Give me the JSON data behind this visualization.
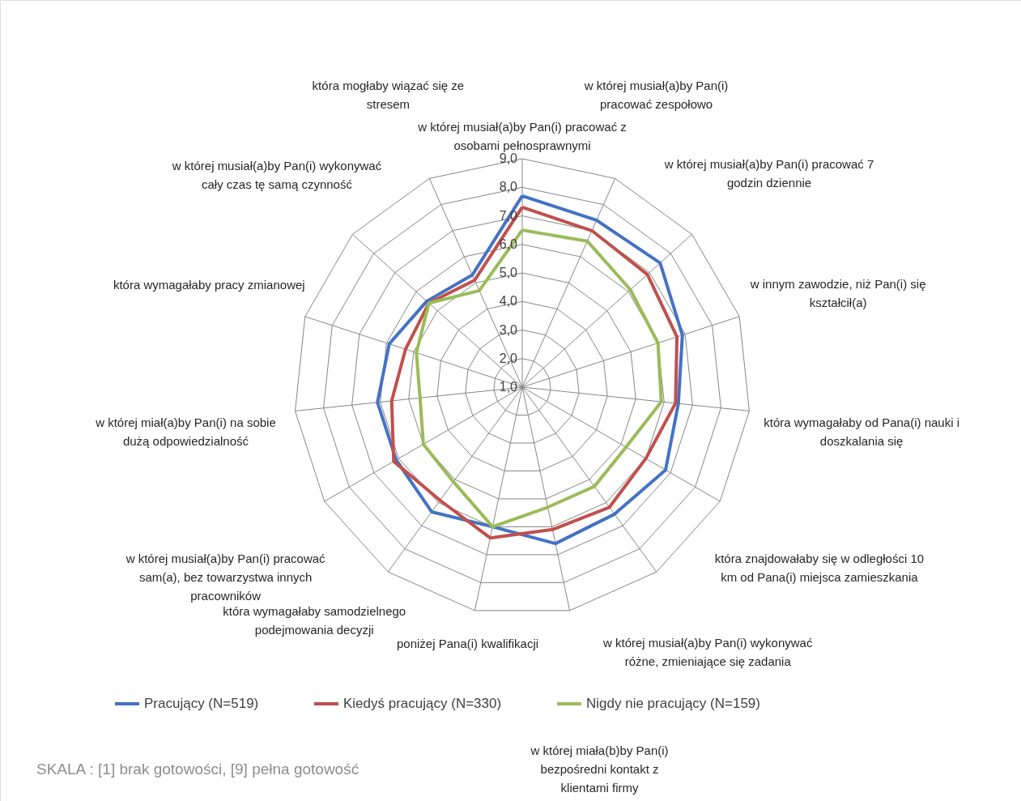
{
  "chart_data": {
    "type": "radar",
    "categories": [
      "w której musiał(a)by Pan(i) pracować z osobami pełnosprawnymi",
      "w której musiał(a)by Pan(i) pracować zespołowo",
      "w której musiał(a)by Pan(i) pracować 7 godzin dziennie",
      "w innym zawodzie, niż Pan(i) się kształcił(a)",
      "która wymagałaby od Pana(i) nauki i doszkalania się",
      "która znajdowałaby się w odległości 10 km od Pana(i) miejsca zamieszkania",
      "w której musiał(a)by Pan(i) wykonywać różne, zmieniające się zadania",
      "w której miała(b)by Pan(i) bezpośredni kontakt z klientami firmy",
      "poniżej Pana(i) kwalifikacji",
      "która wymagałaby samodzielnego podejmowania decyzji",
      "w której musiał(a)by Pan(i) pracować sam(a), bez towarzystwa innych pracowników",
      "w której miał(a)by Pan(i) na sobie dużą odpowiedzialność",
      "która wymagałaby pracy zmianowej",
      "w której musiał(a)by Pan(i) wykonywać cały czas tę samą czynność",
      "która mogłaby wiązać się ze stresem"
    ],
    "series": [
      {
        "name": "Pracujący (N=519)",
        "color": "#4472c4",
        "values": [
          7.7,
          7.4,
          7.5,
          6.9,
          6.5,
          6.8,
          6.5,
          6.6,
          6.0,
          6.4,
          6.1,
          6.1,
          5.9,
          5.5,
          5.3
        ]
      },
      {
        "name": "Kiedyś pracujący (N=330)",
        "color": "#c0504d",
        "values": [
          7.3,
          7.0,
          6.9,
          6.7,
          6.4,
          6.0,
          6.2,
          6.1,
          6.4,
          5.9,
          6.2,
          5.6,
          5.3,
          5.4,
          5.1
        ]
      },
      {
        "name": "Nigdy nie pracujący (N=159)",
        "color": "#9bbb59",
        "values": [
          6.5,
          6.6,
          6.1,
          6.0,
          5.9,
          5.2,
          5.3,
          5.3,
          6.0,
          5.1,
          5.0,
          4.6,
          4.9,
          5.4,
          4.7
        ]
      }
    ],
    "ylim": [
      1,
      9
    ],
    "yticks": [
      {
        "value": 1,
        "label": "1,0"
      },
      {
        "value": 2,
        "label": "2,0"
      },
      {
        "value": 3,
        "label": "3,0"
      },
      {
        "value": 4,
        "label": "4,0"
      },
      {
        "value": 5,
        "label": "5,0"
      },
      {
        "value": 6,
        "label": "6,0"
      },
      {
        "value": 7,
        "label": "7,0"
      },
      {
        "value": 8,
        "label": "8,0"
      },
      {
        "value": 9,
        "label": "9,0"
      }
    ],
    "grid": true,
    "legend": "bottom",
    "annotations": [
      "SKALA : [1] brak gotowości, [9] pełna gotowość"
    ]
  }
}
